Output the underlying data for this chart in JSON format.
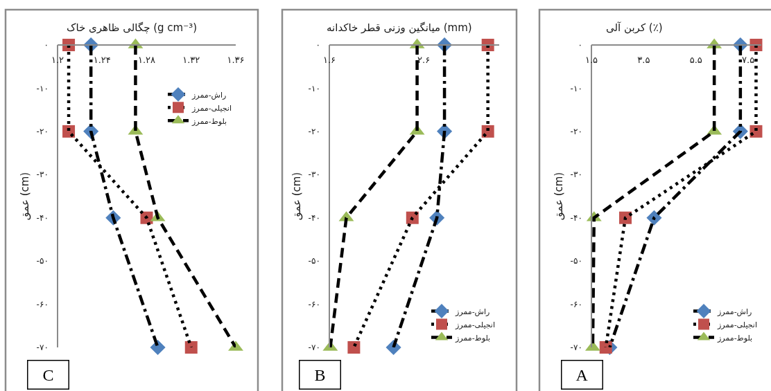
{
  "chart_data": [
    {
      "type": "line",
      "title": "چگالی ظاهری خاک (g cm⁻³)",
      "ylabel": "عمق (cm)",
      "xlim": [
        1.2,
        1.36
      ],
      "xticks": [
        {
          "value": 1.2,
          "label": "۱.۲"
        },
        {
          "value": 1.24,
          "label": "۱.۲۴"
        },
        {
          "value": 1.28,
          "label": "۱.۲۸"
        },
        {
          "value": 1.32,
          "label": "۱.۳۲"
        },
        {
          "value": 1.36,
          "label": "۱.۳۶"
        }
      ],
      "ylim": [
        -70,
        0
      ],
      "yticks": [
        {
          "value": 0,
          "label": "۰"
        },
        {
          "value": -10,
          "label": "-۱۰"
        },
        {
          "value": -20,
          "label": "-۲۰"
        },
        {
          "value": -30,
          "label": "-۳۰"
        },
        {
          "value": -40,
          "label": "-۴۰"
        },
        {
          "value": -50,
          "label": "-۵۰"
        },
        {
          "value": -60,
          "label": "-۶۰"
        },
        {
          "value": -70,
          "label": "-۷۰"
        }
      ],
      "legend": "top right",
      "annotations": [
        "C"
      ],
      "series": [
        {
          "name": "راش-ممرز",
          "color": "#000000",
          "colors": [
            "#4f81bd",
            "#4f81bd",
            "#4f81bd",
            "#4f81bd"
          ],
          "marker": "diamond",
          "line_style": "dashdot",
          "x": [
            1.23,
            1.23,
            1.25,
            1.29
          ],
          "values": [
            0,
            -20,
            -40,
            -70
          ]
        },
        {
          "name": "انجیلی-ممرز",
          "color": "#000000",
          "colors": [
            "#c0504d",
            "#c0504d",
            "#c0504d",
            "#c0504d"
          ],
          "marker": "square",
          "line_style": "dotted",
          "x": [
            1.21,
            1.21,
            1.28,
            1.32
          ],
          "values": [
            0,
            -20,
            -40,
            -70
          ]
        },
        {
          "name": "بلوط-ممرز",
          "color": "#000000",
          "colors": [
            "#9bbb59",
            "#9bbb59",
            "#9bbb59",
            "#9bbb59"
          ],
          "marker": "triangle",
          "line_style": "dashed",
          "x": [
            1.27,
            1.27,
            1.29,
            1.36
          ],
          "values": [
            0,
            -20,
            -40,
            -70
          ]
        }
      ]
    },
    {
      "type": "line",
      "title": "میانگین وزنی قطر خاکدانه (mm)",
      "ylabel": "عمق (cm)",
      "xlim": [
        1.6,
        3.4
      ],
      "xticks": [
        {
          "value": 1.6,
          "label": "۱.۶"
        },
        {
          "value": 2.6,
          "label": "۲.۶"
        }
      ],
      "ylim": [
        -70,
        0
      ],
      "yticks": [
        {
          "value": 0,
          "label": "۰"
        },
        {
          "value": -10,
          "label": "-۱۰"
        },
        {
          "value": -20,
          "label": "-۲۰"
        },
        {
          "value": -30,
          "label": "-۳۰"
        },
        {
          "value": -40,
          "label": "-۴۰"
        },
        {
          "value": -50,
          "label": "-۵۰"
        },
        {
          "value": -60,
          "label": "-۶۰"
        },
        {
          "value": -70,
          "label": "-۷۰"
        }
      ],
      "legend": "bottom right",
      "annotations": [
        "B"
      ],
      "series": [
        {
          "name": "راش-ممرز",
          "color": "#000000",
          "colors": [
            "#4f81bd",
            "#4f81bd",
            "#4f81bd",
            "#4f81bd"
          ],
          "marker": "diamond",
          "line_style": "dashdot",
          "x": [
            2.82,
            2.82,
            2.74,
            2.28
          ],
          "values": [
            0,
            -20,
            -40,
            -70
          ]
        },
        {
          "name": "انجیلی-ممرز",
          "color": "#000000",
          "colors": [
            "#c0504d",
            "#c0504d",
            "#c0504d",
            "#c0504d"
          ],
          "marker": "square",
          "line_style": "dotted",
          "x": [
            3.28,
            3.28,
            2.48,
            1.86
          ],
          "values": [
            0,
            -20,
            -40,
            -70
          ]
        },
        {
          "name": "بلوط-ممرز",
          "color": "#000000",
          "colors": [
            "#9bbb59",
            "#9bbb59",
            "#9bbb59",
            "#9bbb59"
          ],
          "marker": "triangle",
          "line_style": "dashed",
          "x": [
            2.53,
            2.53,
            1.78,
            1.61
          ],
          "values": [
            0,
            -20,
            -40,
            -70
          ]
        }
      ]
    },
    {
      "type": "line",
      "title": "کربن آلی (٪)",
      "ylabel": "عمق (cm)",
      "xlim": [
        1.5,
        8
      ],
      "xticks": [
        {
          "value": 1.5,
          "label": "۱.۵"
        },
        {
          "value": 3.5,
          "label": "۳.۵"
        },
        {
          "value": 5.5,
          "label": "۵.۵"
        },
        {
          "value": 7.5,
          "label": "۷.۵"
        }
      ],
      "ylim": [
        -70,
        0
      ],
      "yticks": [
        {
          "value": 0,
          "label": "۰"
        },
        {
          "value": -10,
          "label": "-۱۰"
        },
        {
          "value": -20,
          "label": "-۲۰"
        },
        {
          "value": -30,
          "label": "-۳۰"
        },
        {
          "value": -40,
          "label": "-۴۰"
        },
        {
          "value": -50,
          "label": "-۵۰"
        },
        {
          "value": -60,
          "label": "-۶۰"
        },
        {
          "value": -70,
          "label": "-۷۰"
        }
      ],
      "legend": "bottom right",
      "annotations": [
        "A"
      ],
      "series": [
        {
          "name": "راش-ممرز",
          "color": "#000000",
          "colors": [
            "#4f81bd",
            "#4f81bd",
            "#4f81bd",
            "#4f81bd"
          ],
          "marker": "diamond",
          "line_style": "dashdot",
          "x": [
            7.2,
            7.2,
            3.9,
            2.2
          ],
          "values": [
            0,
            -20,
            -40,
            -70
          ]
        },
        {
          "name": "انجیلی-ممرز",
          "color": "#000000",
          "colors": [
            "#c0504d",
            "#c0504d",
            "#c0504d",
            "#c0504d"
          ],
          "marker": "square",
          "line_style": "dotted",
          "x": [
            7.8,
            7.8,
            2.8,
            2.05
          ],
          "values": [
            0,
            -20,
            -40,
            -70
          ]
        },
        {
          "name": "بلوط-ممرز",
          "color": "#000000",
          "colors": [
            "#9bbb59",
            "#9bbb59",
            "#9bbb59",
            "#9bbb59"
          ],
          "marker": "triangle",
          "line_style": "dashed",
          "x": [
            6.2,
            6.2,
            1.6,
            1.55
          ],
          "values": [
            0,
            -20,
            -40,
            -70
          ]
        }
      ]
    }
  ]
}
